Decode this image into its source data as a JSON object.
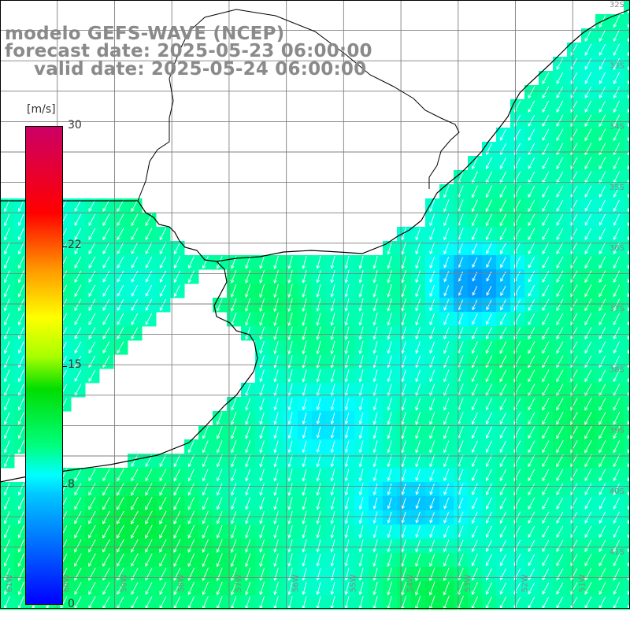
{
  "header": {
    "line1": "modelo GEFS-WAVE (NCEP)",
    "line2": "forecast date: 2025-05-23 06:00:00",
    "line3": "valid date: 2025-05-24 06:00:00"
  },
  "colorbar": {
    "unit": "[m/s]",
    "ticks": [
      "30",
      "22",
      "15",
      "8",
      "0"
    ],
    "tick_values": [
      30,
      22,
      15,
      8,
      0
    ],
    "min": 0,
    "max": 30
  },
  "map": {
    "latitude_labels": [
      "32S",
      "33S",
      "34S",
      "35S",
      "36S",
      "37S",
      "38S",
      "39S",
      "40S",
      "41S"
    ],
    "longitude_labels": [
      "61W",
      "60W",
      "59W",
      "58W",
      "57W",
      "56W",
      "55W",
      "54W",
      "53W",
      "52W",
      "51W"
    ],
    "lat_range": [
      31,
      41
    ],
    "lon_range": [
      -61,
      -50
    ],
    "colors": {
      "land": "#ffffff",
      "grid": "#7f7f7f",
      "coast": "#000000",
      "arrow": "#ffffff",
      "weak_wind": "#0033ff",
      "moderate_wind": "#00c8ff",
      "strong_wind": "#00ff66"
    },
    "wind_direction": "from NNE (arrows pointing SSW)"
  }
}
